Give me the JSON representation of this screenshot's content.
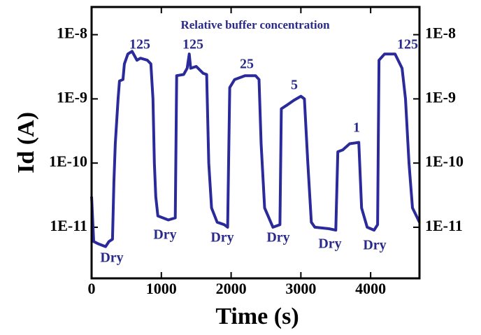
{
  "chart_data": {
    "type": "line",
    "log_y": true,
    "xlabel": "Time (s)",
    "ylabel": "Id (A)",
    "annotations": [
      "Relative buffer concentration",
      "125",
      "125",
      "25",
      "5",
      "1",
      "125",
      "Dry",
      "Dry",
      "Dry",
      "Dry",
      "Dry",
      "Dry"
    ],
    "xlim": [
      0,
      4700
    ],
    "xticks": [
      0,
      1000,
      2000,
      3000,
      4000
    ],
    "ylim": [
      1.6e-12,
      2.7e-08
    ],
    "yticks": [
      {
        "value": 1e-11,
        "label": "1E-11"
      },
      {
        "value": 1e-10,
        "label": "1E-10"
      },
      {
        "value": 1e-09,
        "label": "1E-9"
      },
      {
        "value": 1e-08,
        "label": "1E-8"
      }
    ],
    "series": [
      {
        "color": "#2a2a9a",
        "x": [
          0,
          30,
          100,
          200,
          250,
          300,
          320,
          340,
          380,
          400,
          450,
          470,
          520,
          580,
          650,
          700,
          800,
          850,
          880,
          900,
          920,
          950,
          1100,
          1200,
          1220,
          1320,
          1370,
          1400,
          1420,
          1500,
          1600,
          1650,
          1680,
          1720,
          1800,
          1900,
          1950,
          1980,
          2050,
          2200,
          2350,
          2400,
          2430,
          2480,
          2600,
          2700,
          2720,
          2800,
          2900,
          3000,
          3050,
          3100,
          3150,
          3200,
          3400,
          3500,
          3530,
          3600,
          3700,
          3830,
          3870,
          3950,
          4050,
          4100,
          4120,
          4200,
          4350,
          4450,
          4500,
          4550,
          4600,
          4700
        ],
        "values": [
          3e-11,
          6e-12,
          5.5e-12,
          5e-12,
          6e-12,
          6.5e-12,
          5e-11,
          2e-10,
          1e-09,
          1.9e-09,
          2e-09,
          3.5e-09,
          5e-09,
          5.5e-09,
          4e-09,
          4.3e-09,
          4e-09,
          3.5e-09,
          1e-09,
          1e-10,
          3e-11,
          1.5e-11,
          1.3e-11,
          1.4e-11,
          2.3e-09,
          2.4e-09,
          3e-09,
          5e-09,
          3e-09,
          3.2e-09,
          2.5e-09,
          2.4e-09,
          1e-10,
          2e-11,
          1.2e-11,
          1.1e-11,
          1e-11,
          1.5e-09,
          2e-09,
          2.3e-09,
          2.3e-09,
          2e-09,
          2e-10,
          2e-11,
          1e-11,
          1.1e-11,
          7e-10,
          8e-10,
          9.5e-10,
          1.1e-09,
          1e-09,
          1e-10,
          1.2e-11,
          1e-11,
          9.5e-12,
          9e-12,
          1.5e-10,
          1.6e-10,
          2e-10,
          2.1e-10,
          2e-11,
          1e-11,
          9e-12,
          1.1e-11,
          4e-09,
          5e-09,
          5e-09,
          3e-09,
          1e-09,
          1e-10,
          2e-11,
          1.2e-11
        ]
      }
    ]
  }
}
